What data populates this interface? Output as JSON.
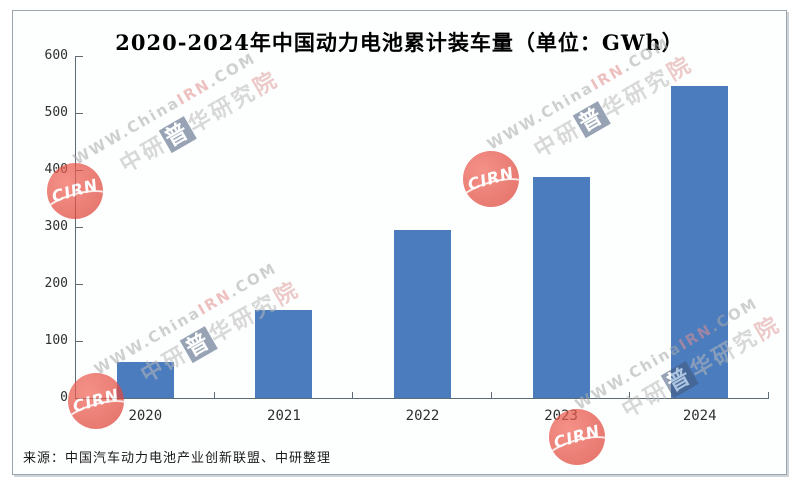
{
  "title": "2020-2024年中国动力电池累计装车量（单位：GWh）",
  "source": "来源：中国汽车动力电池产业创新联盟、中研整理",
  "watermark": {
    "logo_text": "CIRN",
    "url_prefix": "WWW.China",
    "url_mid": "IRN",
    "url_suffix": ".COM",
    "cn_part1": "中研",
    "cn_part2": "普",
    "cn_part3": "华研究",
    "cn_part4": "院"
  },
  "chart_data": {
    "type": "bar",
    "categories": [
      "2020",
      "2021",
      "2022",
      "2023",
      "2024"
    ],
    "values": [
      63,
      154,
      295,
      388,
      548
    ],
    "title": "2020-2024年中国动力电池累计装车量（单位：GWh）",
    "xlabel": "",
    "ylabel": "",
    "ylim": [
      0,
      600
    ],
    "yticks": [
      0,
      100,
      200,
      300,
      400,
      500,
      600
    ],
    "bar_color": "#4a7cbe",
    "grid": false,
    "legend": false
  },
  "colors": {
    "bar": "#4a7cbe",
    "axis": "#5f6b74",
    "border": "#9aa6ad",
    "logo_red": "#d93a30"
  }
}
